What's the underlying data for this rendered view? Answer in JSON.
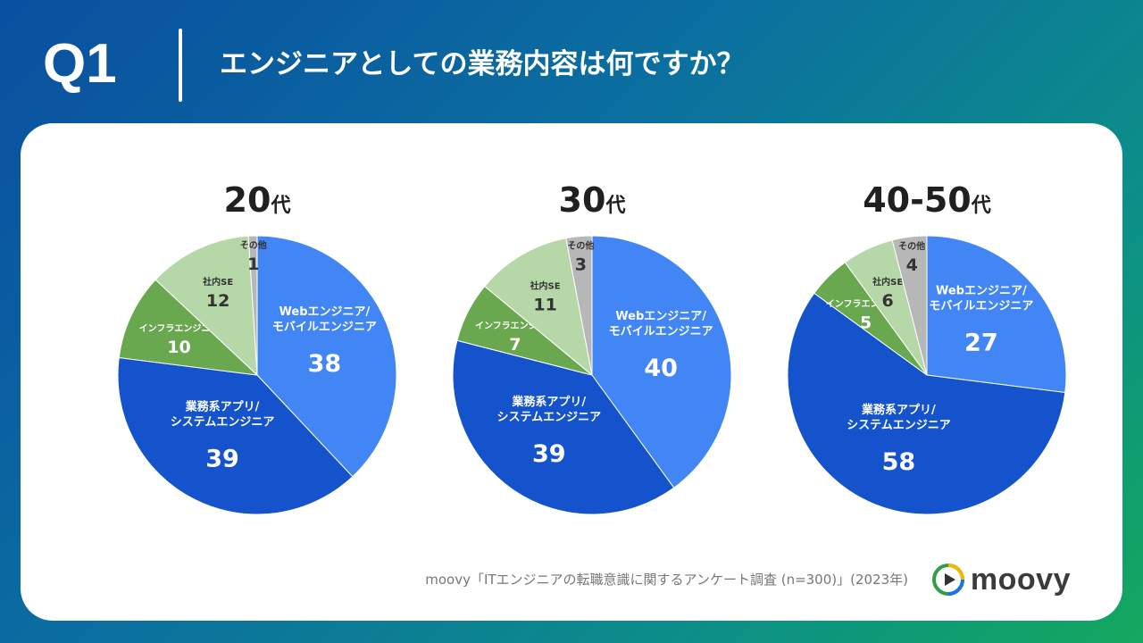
{
  "header": {
    "q_label": "Q1",
    "question": "エンジニアとしての業務内容は何ですか？"
  },
  "chart_data": [
    {
      "type": "pie",
      "title": "20",
      "title_suffix": "代",
      "slices": [
        {
          "label": "Webエンジニア/\nモバイルエンジニア",
          "value": 38,
          "color": "#4285f4"
        },
        {
          "label": "業務系アプリ/\nシステムエンジニア",
          "value": 39,
          "color": "#1453cc"
        },
        {
          "label": "インフラエンジニア",
          "value": 10,
          "color": "#69a84f"
        },
        {
          "label": "社内SE",
          "value": 12,
          "color": "#b6d7a8"
        },
        {
          "label": "その他",
          "value": 1,
          "color": "#b7b7b7"
        }
      ]
    },
    {
      "type": "pie",
      "title": "30",
      "title_suffix": "代",
      "slices": [
        {
          "label": "Webエンジニア/\nモバイルエンジニア",
          "value": 40,
          "color": "#4285f4"
        },
        {
          "label": "業務系アプリ/\nシステムエンジニア",
          "value": 39,
          "color": "#1453cc"
        },
        {
          "label": "インフラエンジニア",
          "value": 7,
          "color": "#69a84f"
        },
        {
          "label": "社内SE",
          "value": 11,
          "color": "#b6d7a8"
        },
        {
          "label": "その他",
          "value": 3,
          "color": "#b7b7b7"
        }
      ]
    },
    {
      "type": "pie",
      "title": "40-50",
      "title_suffix": "代",
      "slices": [
        {
          "label": "Webエンジニア/\nモバイルエンジニア",
          "value": 27,
          "color": "#4285f4"
        },
        {
          "label": "業務系アプリ/\nシステムエンジニア",
          "value": 58,
          "color": "#1453cc"
        },
        {
          "label": "インフラエンジニア",
          "value": 5,
          "color": "#69a84f"
        },
        {
          "label": "社内SE",
          "value": 6,
          "color": "#b6d7a8"
        },
        {
          "label": "その他",
          "value": 4,
          "color": "#b7b7b7"
        }
      ]
    }
  ],
  "footer": {
    "source": "moovy「ITエンジニアの転職意識に関するアンケート調査 (n=300)」(2023年)",
    "logo_text": "moovy"
  }
}
